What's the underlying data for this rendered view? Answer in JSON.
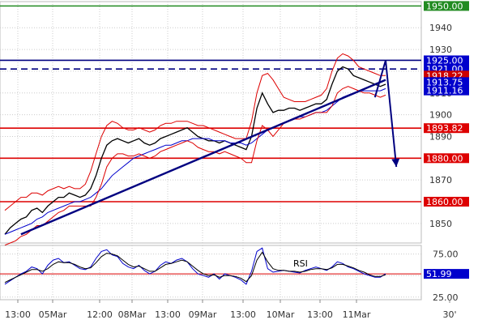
{
  "chart_data": [
    {
      "type": "line",
      "title": "",
      "x_ticks": [
        "13:00",
        "05Mar",
        "12:00",
        "08Mar",
        "13:00",
        "09Mar",
        "13:00",
        "10Mar",
        "13:00",
        "11Mar",
        "30'"
      ],
      "y_ticks": [
        1850,
        1860,
        1870,
        1880,
        1890,
        1900,
        1910,
        1920,
        1930,
        1940,
        1950
      ],
      "ylim": [
        1841,
        1952
      ],
      "series": [
        {
          "values": [
            1845,
            1848,
            1850,
            1852,
            1853,
            1856,
            1857,
            1855,
            1858,
            1860,
            1862,
            1862,
            1864,
            1863,
            1862,
            1863,
            1866,
            1872,
            1880,
            1886,
            1888,
            1889,
            1888,
            1887,
            1888,
            1889,
            1887,
            1886,
            1887,
            1889,
            1890,
            1891,
            1892,
            1893,
            1894,
            1892,
            1890,
            1889,
            1888,
            1888,
            1887,
            1888,
            1887,
            1886,
            1885,
            1884,
            1890,
            1903,
            1910,
            1905,
            1901,
            1902,
            1902,
            1903,
            1903,
            1902,
            1903,
            1904,
            1905,
            1905,
            1907,
            1914,
            1920,
            1922,
            1921,
            1918,
            1917,
            1916,
            1915,
            1914,
            1913,
            1914
          ]
        },
        {
          "values": [
            1845,
            1846,
            1847,
            1848,
            1849,
            1850,
            1852,
            1853,
            1855,
            1856,
            1857,
            1858,
            1859,
            1860,
            1860,
            1861,
            1862,
            1864,
            1866,
            1869,
            1872,
            1874,
            1876,
            1878,
            1880,
            1881,
            1882,
            1883,
            1884,
            1885,
            1886,
            1886,
            1887,
            1888,
            1888,
            1889,
            1889,
            1889,
            1889,
            1888,
            1888,
            1888,
            1887,
            1887,
            1887,
            1886,
            1887,
            1889,
            1891,
            1893,
            1894,
            1895,
            1896,
            1897,
            1898,
            1899,
            1899,
            1900,
            1901,
            1901,
            1902,
            1904,
            1906,
            1908,
            1909,
            1910,
            1911,
            1911,
            1911,
            1911,
            1911,
            1912
          ]
        },
        {
          "values": [
            1856,
            1858,
            1860,
            1862,
            1862,
            1864,
            1864,
            1863,
            1865,
            1866,
            1867,
            1866,
            1867,
            1866,
            1866,
            1868,
            1874,
            1882,
            1890,
            1895,
            1897,
            1896,
            1894,
            1893,
            1893,
            1894,
            1893,
            1892,
            1893,
            1895,
            1896,
            1896,
            1897,
            1897,
            1897,
            1896,
            1895,
            1895,
            1894,
            1893,
            1892,
            1891,
            1890,
            1889,
            1889,
            1889,
            1897,
            1910,
            1918,
            1919,
            1916,
            1912,
            1908,
            1907,
            1906,
            1906,
            1906,
            1907,
            1908,
            1909,
            1912,
            1920,
            1926,
            1928,
            1927,
            1925,
            1922,
            1921,
            1920,
            1919,
            1918,
            1918
          ]
        },
        {
          "values": [
            1840,
            1841,
            1842,
            1844,
            1845,
            1847,
            1849,
            1849,
            1851,
            1853,
            1855,
            1856,
            1858,
            1858,
            1858,
            1858,
            1858,
            1862,
            1868,
            1876,
            1880,
            1882,
            1882,
            1881,
            1881,
            1882,
            1881,
            1880,
            1881,
            1883,
            1884,
            1885,
            1886,
            1887,
            1888,
            1887,
            1885,
            1884,
            1883,
            1883,
            1882,
            1883,
            1882,
            1881,
            1880,
            1878,
            1878,
            1888,
            1895,
            1893,
            1890,
            1893,
            1896,
            1897,
            1898,
            1898,
            1899,
            1900,
            1901,
            1901,
            1901,
            1904,
            1910,
            1912,
            1913,
            1912,
            1911,
            1910,
            1910,
            1909,
            1908,
            1909
          ]
        }
      ],
      "horizontal_levels": [
        {
          "value": 1950.0,
          "label": "1950.00",
          "line_color": "#228b22",
          "badge_color": "#228b22",
          "style": "solid"
        },
        {
          "value": 1925.0,
          "label": "1925.00",
          "line_color": "#000080",
          "badge_color": "#0000cc",
          "style": "solid"
        },
        {
          "value": 1921.0,
          "label": "1921.00",
          "line_color": "#000080",
          "badge_color": "#0000cc",
          "style": "dashed"
        },
        {
          "value": 1893.82,
          "label": "1893.82",
          "line_color": "#dd0000",
          "badge_color": "#dd0000",
          "style": "solid"
        },
        {
          "value": 1880.0,
          "label": "1880.00",
          "line_color": "#dd0000",
          "badge_color": "#dd0000",
          "style": "solid"
        },
        {
          "value": 1860.0,
          "label": "1860.00",
          "line_color": "#dd0000",
          "badge_color": "#dd0000",
          "style": "solid"
        }
      ],
      "overlapping_badges": [
        {
          "label": "1918.22",
          "value": 1918.0,
          "badge_color": "#cc0000"
        },
        {
          "label": "1913.75",
          "value": 1915.0,
          "badge_color": "#0000cc"
        }
      ],
      "current_price": {
        "label": "1911.16",
        "value": 1911.16,
        "badge_color": "#0000cc"
      },
      "trendlines": [
        {
          "from": [
            3,
            1845
          ],
          "to": [
            71,
            1916
          ]
        }
      ],
      "forecast_path": [
        [
          69,
          1908
        ],
        [
          71,
          1925
        ],
        [
          73,
          1876
        ]
      ],
      "colors": {
        "price": "#000000",
        "bands": "#dd0000",
        "moving_average": "#0000cc",
        "trend": "#000080"
      }
    },
    {
      "type": "line",
      "label": "RSI",
      "y_ticks": [
        25,
        50,
        75
      ],
      "ylim": [
        22,
        85
      ],
      "current_value": {
        "label": "51.99",
        "value": 51.99,
        "badge_color": "#0000cc"
      },
      "series": [
        {
          "values": [
            40,
            44,
            48,
            52,
            55,
            60,
            58,
            52,
            62,
            68,
            70,
            65,
            66,
            62,
            58,
            57,
            60,
            70,
            78,
            80,
            74,
            72,
            64,
            60,
            58,
            62,
            56,
            52,
            55,
            62,
            66,
            64,
            68,
            70,
            66,
            58,
            52,
            50,
            48,
            52,
            46,
            52,
            50,
            48,
            45,
            40,
            55,
            78,
            82,
            58,
            54,
            55,
            56,
            55,
            54,
            53,
            56,
            58,
            60,
            58,
            56,
            60,
            66,
            64,
            60,
            58,
            55,
            52,
            50,
            48,
            48,
            52
          ]
        },
        {
          "values": [
            42,
            45,
            48,
            51,
            54,
            57,
            57,
            55,
            58,
            63,
            66,
            65,
            65,
            63,
            60,
            58,
            59,
            65,
            72,
            76,
            75,
            73,
            68,
            63,
            60,
            61,
            58,
            55,
            55,
            59,
            63,
            64,
            66,
            68,
            66,
            61,
            56,
            52,
            50,
            51,
            48,
            50,
            50,
            49,
            47,
            43,
            50,
            68,
            77,
            66,
            58,
            56,
            56,
            55,
            55,
            54,
            55,
            57,
            58,
            58,
            57,
            59,
            63,
            63,
            61,
            59,
            56,
            54,
            51,
            49,
            49,
            51
          ]
        }
      ],
      "colors": {
        "rsi": "#0000cc",
        "signal": "#000000",
        "level_50": "#dd0000"
      }
    }
  ]
}
